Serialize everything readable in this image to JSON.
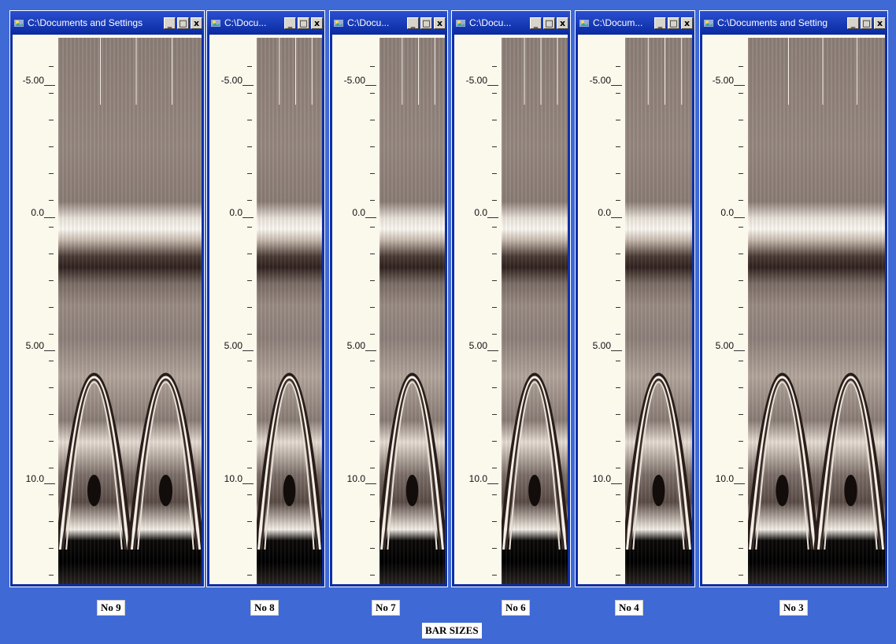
{
  "panels": [
    {
      "title": "C:\\Documents and Settings",
      "bar_label": "No 9",
      "scale_labels": [
        "-5.00",
        "0.0",
        "5.00",
        "10.0"
      ],
      "hyperbolas": 2
    },
    {
      "title": "C:\\Docu...",
      "bar_label": "No 8",
      "scale_labels": [
        "-5.00",
        "0.0",
        "5.00",
        "10.0"
      ],
      "hyperbolas": 1
    },
    {
      "title": "C:\\Docu...",
      "bar_label": "No 7",
      "scale_labels": [
        "-5.00",
        "0.0",
        "5.00",
        "10.0"
      ],
      "hyperbolas": 1
    },
    {
      "title": "C:\\Docu...",
      "bar_label": "No 6",
      "scale_labels": [
        "-5.00",
        "0.0",
        "5.00",
        "10.0"
      ],
      "hyperbolas": 1
    },
    {
      "title": "C:\\Docum...",
      "bar_label": "No 4",
      "scale_labels": [
        "-5.00",
        "0.0",
        "5.00",
        "10.0"
      ],
      "hyperbolas": 1
    },
    {
      "title": "C:\\Documents and Setting",
      "bar_label": "No 3",
      "scale_labels": [
        "-5.00",
        "0.0",
        "5.00",
        "10.0"
      ],
      "hyperbolas": 2
    }
  ],
  "window_controls": {
    "minimize": "_",
    "maximize": "□",
    "close": "x"
  },
  "caption": "BAR SIZES"
}
